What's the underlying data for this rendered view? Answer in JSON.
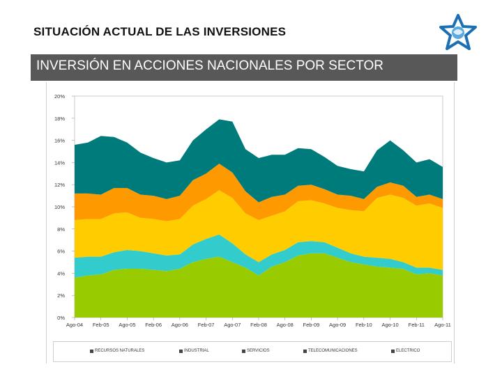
{
  "slide": {
    "title": "SITUACIÓN ACTUAL DE LAS INVERSIONES",
    "banner": "INVERSIÓN EN ACCIONES NACIONALES POR SECTOR",
    "logo_icon": "hands-star-logo-icon"
  },
  "colors": {
    "recursos_naturales": "#99CC00",
    "industrial": "#33CCCC",
    "servicios": "#FFCC00",
    "telecomunicaciones": "#FF9900",
    "electrico": "#007B7B",
    "banner_bg": "#585858"
  },
  "chart_data": {
    "type": "area",
    "stacked": true,
    "title": "",
    "xlabel": "",
    "ylabel": "",
    "ylim": [
      0,
      20
    ],
    "yticks": [
      "0%",
      "2%",
      "4%",
      "6%",
      "8%",
      "10%",
      "12%",
      "14%",
      "16%",
      "18%",
      "20%"
    ],
    "xticks": [
      "Ago-04",
      "Feb-05",
      "Ago-05",
      "Feb-06",
      "Ago-06",
      "Feb-07",
      "Ago-07",
      "Feb-08",
      "Ago-08",
      "Feb-09",
      "Ago-09",
      "Feb-10",
      "Ago-10",
      "Feb-11",
      "Ago-11"
    ],
    "x": [
      "Ago-04",
      "Nov-04",
      "Feb-05",
      "May-05",
      "Ago-05",
      "Nov-05",
      "Feb-06",
      "May-06",
      "Ago-06",
      "Nov-06",
      "Feb-07",
      "May-07",
      "Ago-07",
      "Nov-07",
      "Feb-08",
      "May-08",
      "Ago-08",
      "Nov-08",
      "Feb-09",
      "May-09",
      "Ago-09",
      "Nov-09",
      "Feb-10",
      "May-10",
      "Ago-10",
      "Nov-10",
      "Feb-11",
      "May-11",
      "Ago-11"
    ],
    "series": [
      {
        "name": "RECURSOS NATURALES",
        "values": [
          3.6,
          3.8,
          3.9,
          4.3,
          4.4,
          4.4,
          4.3,
          4.2,
          4.4,
          5.0,
          5.3,
          5.5,
          5.0,
          4.5,
          3.8,
          4.6,
          5.0,
          5.6,
          5.8,
          5.8,
          5.4,
          5.0,
          4.8,
          4.6,
          4.5,
          4.4,
          3.9,
          4.0,
          3.8
        ]
      },
      {
        "name": "INDUSTRIAL",
        "values": [
          1.8,
          1.7,
          1.6,
          1.6,
          1.7,
          1.6,
          1.5,
          1.4,
          1.3,
          1.6,
          1.8,
          2.0,
          1.7,
          1.2,
          1.2,
          1.1,
          1.1,
          1.2,
          1.1,
          1.0,
          0.9,
          0.8,
          0.7,
          0.8,
          0.8,
          0.6,
          0.6,
          0.5,
          0.5
        ]
      },
      {
        "name": "SERVICIOS",
        "values": [
          3.4,
          3.4,
          3.4,
          3.5,
          3.4,
          3.0,
          3.1,
          3.1,
          3.2,
          3.5,
          3.6,
          4.0,
          4.1,
          3.7,
          3.8,
          3.5,
          3.5,
          3.7,
          3.7,
          3.5,
          3.6,
          3.9,
          4.1,
          5.4,
          5.8,
          5.8,
          5.6,
          5.8,
          5.6
        ]
      },
      {
        "name": "TELECOMUNICACIONES",
        "values": [
          2.4,
          2.3,
          2.2,
          2.3,
          2.2,
          2.1,
          2.1,
          2.0,
          2.1,
          2.3,
          2.3,
          2.4,
          2.3,
          2.0,
          1.6,
          1.7,
          1.5,
          1.4,
          1.4,
          1.3,
          1.2,
          1.3,
          1.1,
          1.0,
          1.1,
          1.1,
          0.8,
          0.8,
          0.8
        ]
      },
      {
        "name": "ELÉCTRICO",
        "values": [
          4.4,
          4.6,
          5.3,
          4.6,
          4.1,
          3.8,
          3.4,
          3.3,
          3.2,
          3.6,
          4.0,
          4.0,
          4.6,
          3.8,
          4.0,
          3.8,
          3.6,
          3.4,
          3.2,
          2.9,
          2.6,
          2.4,
          2.5,
          3.3,
          3.8,
          3.2,
          3.1,
          3.2,
          2.9
        ]
      }
    ],
    "legend": [
      "RECURSOS NATURALES",
      "INDUSTRIAL",
      "SERVICIOS",
      "TELECOMUNICACIONES",
      "ELECTRICO"
    ],
    "legend_position": "bottom",
    "grid": false
  }
}
